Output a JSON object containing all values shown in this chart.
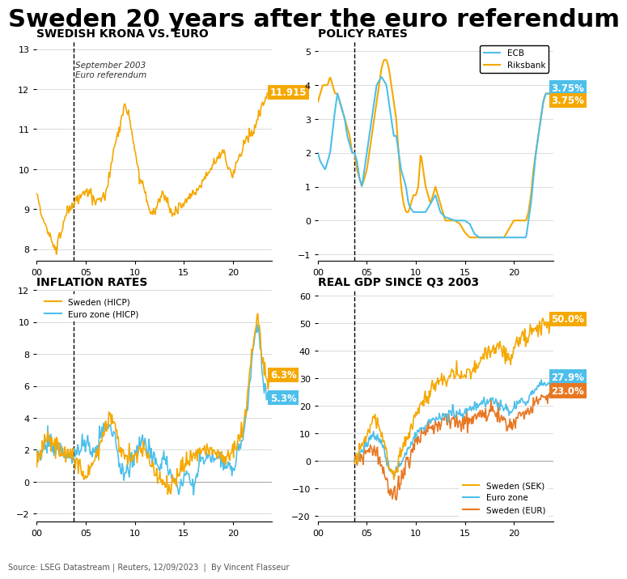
{
  "title": "Sweden 20 years after the euro referendum",
  "title_fontsize": 22,
  "title_fontweight": "bold",
  "source_text": "Source: LSEG Datastream | Reuters, 12/09/2023  |  By Vincent Flasseur",
  "referendum_year": 3.75,
  "gold_color": "#F5A800",
  "blue_color": "#4DBFEA",
  "orange_color": "#E87722",
  "subplot_title_fontsize": 10,
  "plots": {
    "krona": {
      "title": "SWEDISH KRONA VS. EURO",
      "ylim": [
        13.2,
        7.7
      ],
      "yticks": [
        8,
        9,
        10,
        11,
        12,
        13
      ],
      "end_label": "11.915",
      "annotation_text": "September 2003\nEuro referendum"
    },
    "policy": {
      "title": "POLICY RATES",
      "ylim": [
        -1.2,
        5.3
      ],
      "yticks": [
        -1,
        0,
        1,
        2,
        3,
        4,
        5
      ],
      "ecb_label": "ECB",
      "riksbank_label": "Riksbank",
      "ecb_end": "3.75%",
      "riksbank_end": "3.75%"
    },
    "inflation": {
      "title": "INFLATION RATES",
      "ylim": [
        -2.5,
        12
      ],
      "yticks": [
        -2,
        0,
        2,
        4,
        6,
        8,
        10,
        12
      ],
      "sweden_label": "Sweden (HICP)",
      "eurozone_label": "Euro zone (HICP)",
      "sweden_end": "6.3%",
      "eurozone_end": "5.3%"
    },
    "gdp": {
      "title": "REAL GDP SINCE Q3 2003",
      "ylim": [
        -22,
        62
      ],
      "yticks": [
        -20,
        -10,
        0,
        10,
        20,
        30,
        40,
        50,
        60
      ],
      "sek_label": "Sweden (SEK)",
      "eurozone_label": "Euro zone",
      "eur_label": "Sweden (EUR)",
      "sek_end": "50.0%",
      "eurozone_end": "27.9%",
      "eur_end": "23.0%"
    }
  }
}
